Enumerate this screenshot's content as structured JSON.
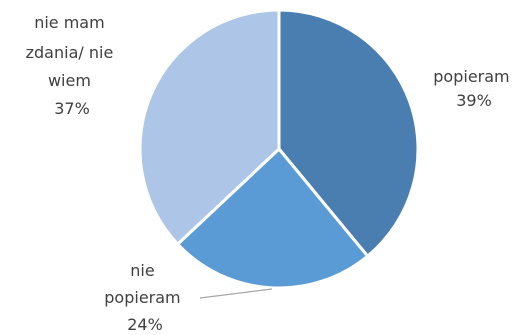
{
  "chart_data": {
    "type": "pie",
    "title": "",
    "start_angle_deg": 0,
    "direction": "clockwise",
    "slices": [
      {
        "label": "popieram",
        "value": 39,
        "value_label": "39%",
        "color": "#4A7EB1"
      },
      {
        "label": "nie popieram",
        "value": 24,
        "value_label": "24%",
        "color": "#5B9BD5"
      },
      {
        "label": "nie mam zdania/ nie wiem",
        "value": 37,
        "value_label": "37%",
        "color": "#ADC5E7"
      }
    ],
    "legend": false,
    "data_labels": "category and percentage, outside",
    "slice_border_color": "#FFFFFF"
  }
}
